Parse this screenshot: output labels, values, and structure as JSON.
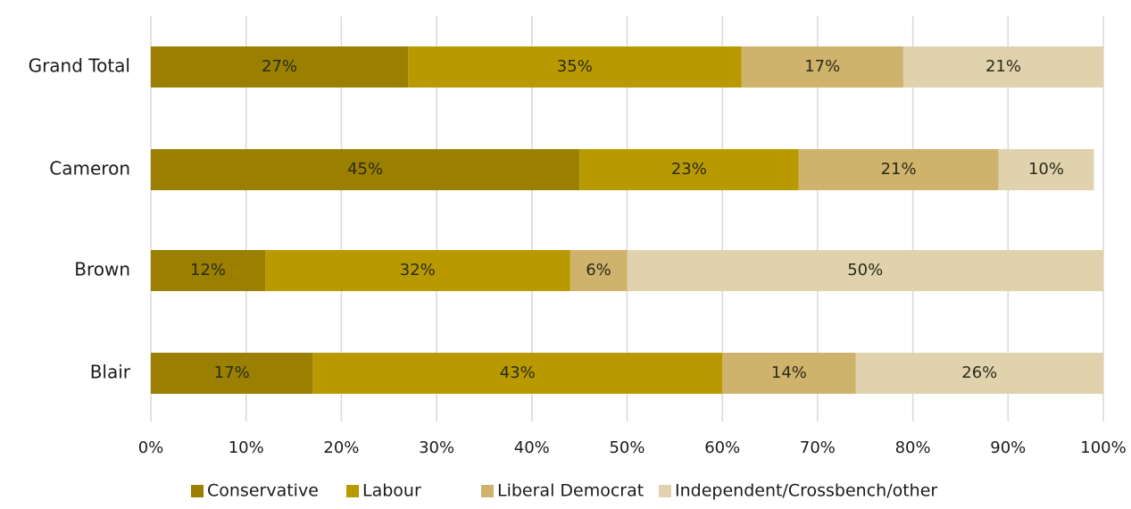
{
  "chart_data": {
    "type": "bar",
    "orientation": "horizontal",
    "stacked": true,
    "percent": true,
    "categories": [
      "Grand Total",
      "Cameron",
      "Brown",
      "Blair"
    ],
    "series": [
      {
        "name": "Conservative",
        "color": "#9a7f00",
        "values": [
          27,
          45,
          12,
          17
        ]
      },
      {
        "name": "Labour",
        "color": "#b89a00",
        "values": [
          35,
          23,
          32,
          43
        ]
      },
      {
        "name": "Liberal Democrat",
        "color": "#cfb26b",
        "values": [
          17,
          21,
          6,
          14
        ]
      },
      {
        "name": "Independent/Crossbench/other",
        "color": "#e0d2ac",
        "values": [
          21,
          10,
          50,
          26
        ]
      }
    ],
    "value_labels": [
      [
        "27%",
        "35%",
        "17%",
        "21%"
      ],
      [
        "45%",
        "23%",
        "21%",
        "10%"
      ],
      [
        "12%",
        "32%",
        "6%",
        "50%"
      ],
      [
        "17%",
        "43%",
        "14%",
        "26%"
      ]
    ],
    "xlim": [
      0,
      100
    ],
    "x_ticks": [
      "0%",
      "10%",
      "20%",
      "30%",
      "40%",
      "50%",
      "60%",
      "70%",
      "80%",
      "90%",
      "100%"
    ],
    "grid": true,
    "legend_position": "bottom"
  }
}
